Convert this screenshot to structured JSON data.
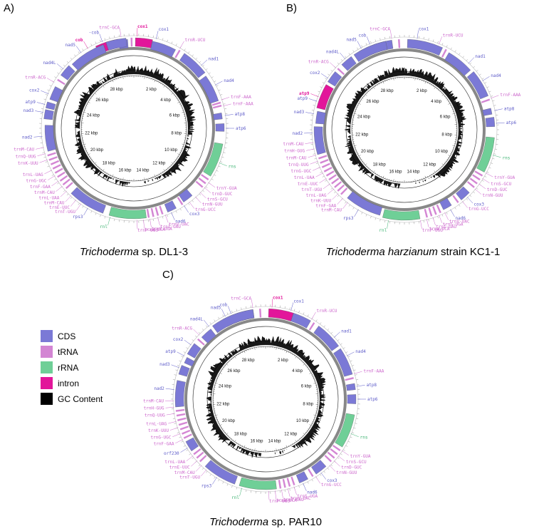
{
  "colors": {
    "CDS": "#7b79d6",
    "tRNA": "#d385d3",
    "rRNA": "#6fcf97",
    "intron": "#e2169a",
    "GC": "#000000",
    "ring": "#888888",
    "label_CDS": "#5b59c8",
    "label_tRNA": "#cc66cc",
    "label_rRNA": "#3cb371",
    "label_intron": "#e2169a"
  },
  "legend": [
    {
      "key": "CDS",
      "label": "CDS"
    },
    {
      "key": "tRNA",
      "label": "tRNA"
    },
    {
      "key": "rRNA",
      "label": "rRNA"
    },
    {
      "key": "intron",
      "label": "intron"
    },
    {
      "key": "GC",
      "label": "GC Content"
    }
  ],
  "kbp_labels": [
    "2 kbp",
    "4 kbp",
    "6 kbp",
    "8 kbp",
    "10 kbp",
    "12 kbp",
    "14 kbp",
    "16 kbp",
    "18 kbp",
    "20 kbp",
    "22 kbp",
    "24 kbp",
    "26 kbp",
    "28 kbp"
  ],
  "panels": [
    {
      "letter": "A)",
      "caption_italic": "Trichoderma",
      "caption_rest": " sp. DL1-3",
      "labels": [
        {
          "text": "cox1",
          "type": "intron",
          "a": 2
        },
        {
          "text": "cob",
          "type": "intron",
          "a": -30
        },
        {
          "text": "-cob",
          "type": "CDS",
          "a": -20
        },
        {
          "text": "trnC-GCA",
          "type": "tRNA",
          "a": -8
        },
        {
          "text": "cox1",
          "type": "CDS",
          "a": 14
        },
        {
          "text": "trnR-UCU",
          "type": "tRNA",
          "a": 30
        },
        {
          "text": "nad1",
          "type": "CDS",
          "a": 47
        },
        {
          "text": "nad4",
          "type": "CDS",
          "a": 62
        },
        {
          "text": "trnF-AAA",
          "type": "tRNA",
          "a": 72
        },
        {
          "text": "trnF-AAA",
          "type": "tRNA",
          "a": 76
        },
        {
          "text": "atp8",
          "type": "CDS",
          "a": 82
        },
        {
          "text": "atp6",
          "type": "CDS",
          "a": 90
        },
        {
          "text": "rns",
          "type": "rRNA",
          "a": 112
        },
        {
          "text": "trnY-GUA",
          "type": "tRNA",
          "a": 126
        },
        {
          "text": "trnD-GUC",
          "type": "tRNA",
          "a": 130
        },
        {
          "text": "trnS-GCU",
          "type": "tRNA",
          "a": 134
        },
        {
          "text": "trnN-GUU",
          "type": "tRNA",
          "a": 138
        },
        {
          "text": "trnG-UCC",
          "type": "tRNA",
          "a": 143
        },
        {
          "text": "cox3",
          "type": "CDS",
          "a": 147
        },
        {
          "text": "nad6",
          "type": "CDS",
          "a": 156
        },
        {
          "text": "trnV-UAC",
          "type": "tRNA",
          "a": 160
        },
        {
          "text": "trnI-GAU",
          "type": "tRNA",
          "a": 165
        },
        {
          "text": "trnS-UGA",
          "type": "tRNA",
          "a": 170
        },
        {
          "text": "trnW-UCA",
          "type": "tRNA",
          "a": 174
        },
        {
          "text": "trnP-UGG",
          "type": "tRNA",
          "a": 178
        },
        {
          "text": "rnl",
          "type": "rRNA",
          "a": 195
        },
        {
          "text": "rps3",
          "type": "CDS",
          "a": 210
        },
        {
          "text": "trnT-UGU",
          "type": "tRNA",
          "a": 215
        },
        {
          "text": "trnE-UUC",
          "type": "tRNA",
          "a": 219
        },
        {
          "text": "trnM-CAU",
          "type": "tRNA",
          "a": 223
        },
        {
          "text": "trnL-UAA",
          "type": "tRNA",
          "a": 227
        },
        {
          "text": "trnM-CAU",
          "type": "tRNA",
          "a": 231
        },
        {
          "text": "trnF-GAA",
          "type": "tRNA",
          "a": 235
        },
        {
          "text": "trnG-UGC",
          "type": "tRNA",
          "a": 239
        },
        {
          "text": "trnL-UAG",
          "type": "tRNA",
          "a": 243
        },
        {
          "text": "trnK-UUU",
          "type": "tRNA",
          "a": 250
        },
        {
          "text": "trnQ-UUG",
          "type": "tRNA",
          "a": 254
        },
        {
          "text": "trnM-CAU",
          "type": "tRNA",
          "a": 258
        },
        {
          "text": "nad2",
          "type": "CDS",
          "a": 265
        },
        {
          "text": "nad3",
          "type": "CDS",
          "a": 280
        },
        {
          "text": "atp9",
          "type": "CDS",
          "a": 285
        },
        {
          "text": "cox2",
          "type": "CDS",
          "a": 292
        },
        {
          "text": "trnR-ACG",
          "type": "tRNA",
          "a": 300
        },
        {
          "text": "nad4L",
          "type": "CDS",
          "a": 310
        },
        {
          "text": "nad5",
          "type": "CDS",
          "a": 325
        }
      ]
    },
    {
      "letter": "B)",
      "caption_italic": "Trichoderma harzianum",
      "caption_rest": " strain KC1-1",
      "labels": [
        {
          "text": "cob",
          "type": "CDS",
          "a": -22
        },
        {
          "text": "trnC-GCA",
          "type": "tRNA",
          "a": -8
        },
        {
          "text": "cox1",
          "type": "CDS",
          "a": 8
        },
        {
          "text": "trnR-UCU",
          "type": "tRNA",
          "a": 22
        },
        {
          "text": "nad1",
          "type": "CDS",
          "a": 44
        },
        {
          "text": "nad4",
          "type": "CDS",
          "a": 58
        },
        {
          "text": "trnF-AAA",
          "type": "tRNA",
          "a": 70
        },
        {
          "text": "atp8",
          "type": "CDS",
          "a": 78
        },
        {
          "text": "atp6",
          "type": "CDS",
          "a": 86
        },
        {
          "text": "rns",
          "type": "rRNA",
          "a": 106
        },
        {
          "text": "trnY-GUA",
          "type": "tRNA",
          "a": 118
        },
        {
          "text": "trnS-GCU",
          "type": "tRNA",
          "a": 122
        },
        {
          "text": "trnD-GUC",
          "type": "tRNA",
          "a": 126
        },
        {
          "text": "trnN-GUU",
          "type": "tRNA",
          "a": 130
        },
        {
          "text": "cox3",
          "type": "CDS",
          "a": 137
        },
        {
          "text": "trnG-UCC",
          "type": "tRNA",
          "a": 141
        },
        {
          "text": "nad6",
          "type": "CDS",
          "a": 150
        },
        {
          "text": "trnV-UAC",
          "type": "tRNA",
          "a": 154
        },
        {
          "text": "trnS-UGA",
          "type": "tRNA",
          "a": 158
        },
        {
          "text": "trnI-GAU",
          "type": "tRNA",
          "a": 162
        },
        {
          "text": "trnW-UCA",
          "type": "tRNA",
          "a": 166
        },
        {
          "text": "trnP-UGG",
          "type": "tRNA",
          "a": 170
        },
        {
          "text": "rnl",
          "type": "rRNA",
          "a": 190
        },
        {
          "text": "rps3",
          "type": "CDS",
          "a": 210
        },
        {
          "text": "trnM-CAU",
          "type": "tRNA",
          "a": 218
        },
        {
          "text": "trnF-GAA",
          "type": "tRNA",
          "a": 222
        },
        {
          "text": "trnK-UUU",
          "type": "tRNA",
          "a": 226
        },
        {
          "text": "trnL-UAG",
          "type": "tRNA",
          "a": 230
        },
        {
          "text": "trnT-UGU",
          "type": "tRNA",
          "a": 234
        },
        {
          "text": "trnE-UUC",
          "type": "tRNA",
          "a": 238
        },
        {
          "text": "trnL-UAA",
          "type": "tRNA",
          "a": 242
        },
        {
          "text": "trnG-UGC",
          "type": "tRNA",
          "a": 246
        },
        {
          "text": "trnQ-UUG",
          "type": "tRNA",
          "a": 250
        },
        {
          "text": "trnM-CAU",
          "type": "tRNA",
          "a": 254
        },
        {
          "text": "trnH-GUG",
          "type": "tRNA",
          "a": 258
        },
        {
          "text": "trnM-CAU",
          "type": "tRNA",
          "a": 262
        },
        {
          "text": "nad2",
          "type": "CDS",
          "a": 268
        },
        {
          "text": "nad3",
          "type": "CDS",
          "a": 280
        },
        {
          "text": "atp9",
          "type": "CDS",
          "a": 288
        },
        {
          "text": "atp9",
          "type": "intron",
          "a": 291
        },
        {
          "text": "cox2",
          "type": "CDS",
          "a": 304
        },
        {
          "text": "trnR-ACG",
          "type": "tRNA",
          "a": 312
        },
        {
          "text": "nad4L",
          "type": "CDS",
          "a": 320
        },
        {
          "text": "nad5",
          "type": "CDS",
          "a": 332
        }
      ]
    },
    {
      "letter": "C)",
      "caption_italic": "Trichoderma",
      "caption_rest": " sp. PAR10",
      "labels": [
        {
          "text": "cox1",
          "type": "intron",
          "a": 4
        },
        {
          "text": "cob",
          "type": "CDS",
          "a": -22
        },
        {
          "text": "trnC-GCA",
          "type": "tRNA",
          "a": -8
        },
        {
          "text": "cox1",
          "type": "CDS",
          "a": 16
        },
        {
          "text": "trnR-UCU",
          "type": "tRNA",
          "a": 30
        },
        {
          "text": "nad1",
          "type": "CDS",
          "a": 48
        },
        {
          "text": "nad4",
          "type": "CDS",
          "a": 62
        },
        {
          "text": "trnF-AAA",
          "type": "tRNA",
          "a": 74
        },
        {
          "text": "atp8",
          "type": "CDS",
          "a": 82
        },
        {
          "text": "atp6",
          "type": "CDS",
          "a": 90
        },
        {
          "text": "rns",
          "type": "rRNA",
          "a": 112
        },
        {
          "text": "trnY-GUA",
          "type": "tRNA",
          "a": 124
        },
        {
          "text": "trnS-GCU",
          "type": "tRNA",
          "a": 128
        },
        {
          "text": "trnD-GUC",
          "type": "tRNA",
          "a": 132
        },
        {
          "text": "trnN-GUU",
          "type": "tRNA",
          "a": 136
        },
        {
          "text": "cox3",
          "type": "CDS",
          "a": 143
        },
        {
          "text": "trnG-UCC",
          "type": "tRNA",
          "a": 147
        },
        {
          "text": "nad6",
          "type": "CDS",
          "a": 156
        },
        {
          "text": "trnS-UGA",
          "type": "tRNA",
          "a": 162
        },
        {
          "text": "trnV-UAC",
          "type": "tRNA",
          "a": 166
        },
        {
          "text": "trnI-GAU",
          "type": "tRNA",
          "a": 170
        },
        {
          "text": "trnW-UCA",
          "type": "tRNA",
          "a": 174
        },
        {
          "text": "trnP-UGG",
          "type": "tRNA",
          "a": 178
        },
        {
          "text": "rnl",
          "type": "rRNA",
          "a": 195
        },
        {
          "text": "rps3",
          "type": "CDS",
          "a": 212
        },
        {
          "text": "trnT-UGU",
          "type": "tRNA",
          "a": 220
        },
        {
          "text": "trnM-CAU",
          "type": "tRNA",
          "a": 224
        },
        {
          "text": "trnE-UUC",
          "type": "tRNA",
          "a": 228
        },
        {
          "text": "trnL-UAA",
          "type": "tRNA",
          "a": 232
        },
        {
          "text": "orf230",
          "type": "CDS",
          "a": 238
        },
        {
          "text": "trnF-GAA",
          "type": "tRNA",
          "a": 244
        },
        {
          "text": "trnG-UGC",
          "type": "tRNA",
          "a": 248
        },
        {
          "text": "trnK-UUU",
          "type": "tRNA",
          "a": 252
        },
        {
          "text": "trnL-UAG",
          "type": "tRNA",
          "a": 256
        },
        {
          "text": "trnQ-UUG",
          "type": "tRNA",
          "a": 261
        },
        {
          "text": "trnH-GUG",
          "type": "tRNA",
          "a": 265
        },
        {
          "text": "trnM-CAU",
          "type": "tRNA",
          "a": 269
        },
        {
          "text": "nad2",
          "type": "CDS",
          "a": 276
        },
        {
          "text": "nad3",
          "type": "CDS",
          "a": 290
        },
        {
          "text": "atp9",
          "type": "CDS",
          "a": 298
        },
        {
          "text": "cox2",
          "type": "CDS",
          "a": 306
        },
        {
          "text": "trnR-ACG",
          "type": "tRNA",
          "a": 314
        },
        {
          "text": "nad4L",
          "type": "CDS",
          "a": 322
        },
        {
          "text": "nad5",
          "type": "CDS",
          "a": 334
        }
      ]
    }
  ]
}
